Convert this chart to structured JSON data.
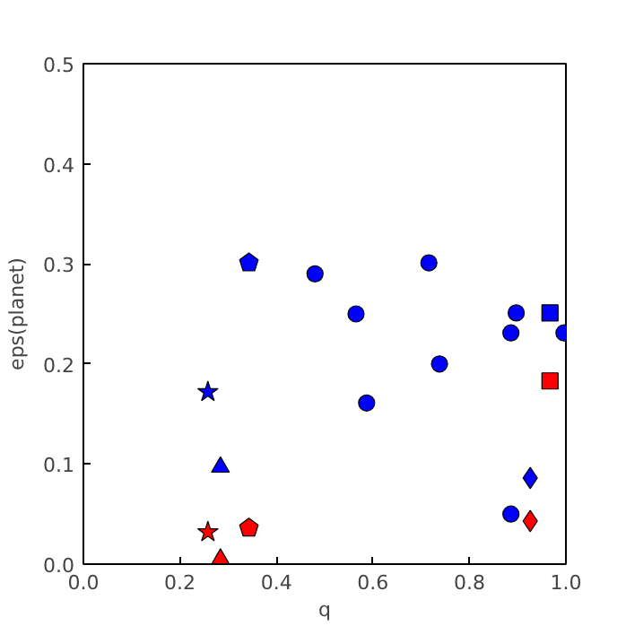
{
  "chart_data": {
    "type": "scatter",
    "xlabel": "q",
    "ylabel": "eps(planet)",
    "xlim": [
      0,
      1
    ],
    "ylim": [
      0,
      0.5
    ],
    "xticks": [
      {
        "value": 0,
        "label": "0.0"
      },
      {
        "value": 0.2,
        "label": "0.2"
      },
      {
        "value": 0.4,
        "label": "0.4"
      },
      {
        "value": 0.6,
        "label": "0.6"
      },
      {
        "value": 0.8,
        "label": "0.8"
      },
      {
        "value": 1,
        "label": "1.0"
      }
    ],
    "yticks": [
      {
        "value": 0,
        "label": "0.0"
      },
      {
        "value": 0.1,
        "label": "0.1"
      },
      {
        "value": 0.2,
        "label": "0.2"
      },
      {
        "value": 0.3,
        "label": "0.3"
      },
      {
        "value": 0.4,
        "label": "0.4"
      },
      {
        "value": 0.5,
        "label": "0.5"
      }
    ],
    "grid": false,
    "series": [
      {
        "color": "#0000ff",
        "marker": "circle",
        "x": [
          0.48,
          0.565,
          0.587,
          0.716,
          0.738,
          0.886,
          0.897,
          0.886,
          0.996
        ],
        "values": [
          0.29,
          0.25,
          0.161,
          0.301,
          0.2,
          0.231,
          0.251,
          0.05,
          0.231
        ]
      },
      {
        "color": "#0000ff",
        "marker": "star",
        "x": [
          0.258
        ],
        "values": [
          0.172
        ]
      },
      {
        "color": "#0000ff",
        "x": [
          0.343
        ],
        "values": [
          0.301
        ]
      },
      {
        "color": "#0000ff",
        "marker": "triangle",
        "x": [
          0.284
        ],
        "values": [
          0.097
        ]
      },
      {
        "color": "#0000ff",
        "marker": "diamond",
        "x": [
          0.926
        ],
        "values": [
          0.086
        ]
      },
      {
        "color": "#0000ff",
        "marker": "square",
        "x": [
          0.967
        ],
        "values": [
          0.251
        ]
      },
      {
        "color": "#ff0000",
        "marker": "star",
        "x": [
          0.258
        ],
        "values": [
          0.032
        ]
      },
      {
        "color": "#ff0000",
        "x": [
          0.343
        ],
        "values": [
          0.036
        ]
      },
      {
        "color": "#ff0000",
        "marker": "triangle",
        "x": [
          0.284
        ],
        "values": [
          0.005
        ]
      },
      {
        "color": "#ff0000",
        "marker": "diamond",
        "x": [
          0.926
        ],
        "values": [
          0.043
        ]
      },
      {
        "color": "#ff0000",
        "marker": "square",
        "x": [
          0.967
        ],
        "values": [
          0.183
        ]
      }
    ]
  }
}
